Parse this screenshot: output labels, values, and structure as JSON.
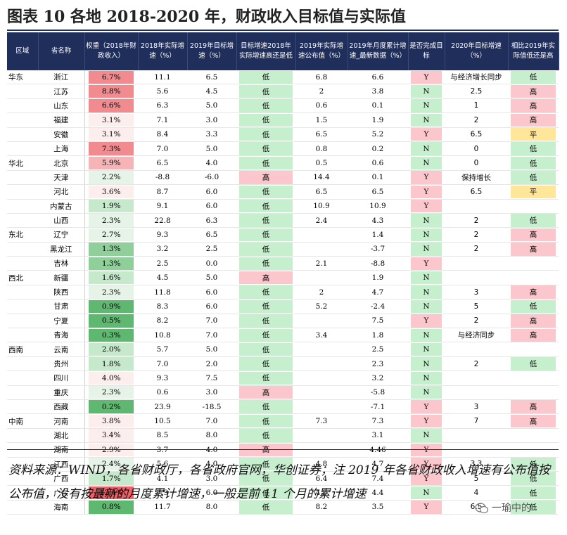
{
  "title": "图表 10   各地 2018-2020 年，财政收入目标值与实际值",
  "colors": {
    "header_bg": "#1f2e5a",
    "red_strong": "#f28b8f",
    "red_mid": "#f6b4b7",
    "red_light": "#fbdadc",
    "red_faint": "#fdeeee",
    "green_strong": "#5fb86f",
    "green_mid": "#8fd09a",
    "green_light": "#c6e9cc",
    "green_faint": "#e6f4e8",
    "pink": "#fbc7cc",
    "lightgreen": "#c6efce",
    "yellow": "#ffe699"
  },
  "headers": [
    "区域",
    "省名称",
    "权重（2018年财政收入）",
    "2018年实际增速（%）",
    "2019年目标增速（%）",
    "目标增速2018年实际增速高还是低",
    "2019年实际增速公布值（%）",
    "2019年月度累计增速_最新数据（%）",
    "是否完成目标",
    "2020年目标增速（%）",
    "相比2019年实际值低还是高"
  ],
  "rows": [
    {
      "region": "华东",
      "prov": "浙江",
      "w": "6.7%",
      "wc": "red_strong",
      "a18": "11.1",
      "t19": "6.5",
      "hl": "低",
      "hlc": "lightgreen",
      "pub19": "6.8",
      "m19": "6.6",
      "done": "Y",
      "dc": "pink",
      "t20": "与经济增长同步",
      "cmp": "低",
      "cc": "lightgreen"
    },
    {
      "region": "",
      "prov": "江苏",
      "w": "8.8%",
      "wc": "red_strong",
      "a18": "5.6",
      "t19": "4.5",
      "hl": "低",
      "hlc": "lightgreen",
      "pub19": "2",
      "m19": "3.8",
      "done": "N",
      "dc": "lightgreen",
      "t20": "2.5",
      "cmp": "高",
      "cc": "pink"
    },
    {
      "region": "",
      "prov": "山东",
      "w": "6.6%",
      "wc": "red_strong",
      "a18": "6.3",
      "t19": "5.0",
      "hl": "低",
      "hlc": "lightgreen",
      "pub19": "0.6",
      "m19": "0.1",
      "done": "N",
      "dc": "lightgreen",
      "t20": "1",
      "cmp": "高",
      "cc": "pink"
    },
    {
      "region": "",
      "prov": "福建",
      "w": "3.1%",
      "wc": "red_faint",
      "a18": "7.1",
      "t19": "3.0",
      "hl": "低",
      "hlc": "lightgreen",
      "pub19": "1.5",
      "m19": "1.9",
      "done": "N",
      "dc": "lightgreen",
      "t20": "2",
      "cmp": "高",
      "cc": "pink"
    },
    {
      "region": "",
      "prov": "安徽",
      "w": "3.1%",
      "wc": "red_faint",
      "a18": "8.4",
      "t19": "3.3",
      "hl": "低",
      "hlc": "lightgreen",
      "pub19": "6.5",
      "m19": "5.2",
      "done": "Y",
      "dc": "pink",
      "t20": "6.5",
      "cmp": "平",
      "cc": "yellow"
    },
    {
      "region": "",
      "prov": "上海",
      "w": "7.3%",
      "wc": "red_strong",
      "a18": "7.0",
      "t19": "5.0",
      "hl": "低",
      "hlc": "lightgreen",
      "pub19": "0.8",
      "m19": "0.2",
      "done": "N",
      "dc": "lightgreen",
      "t20": "0",
      "cmp": "低",
      "cc": "lightgreen"
    },
    {
      "region": "华北",
      "prov": "北京",
      "w": "5.9%",
      "wc": "red_mid",
      "a18": "6.5",
      "t19": "4.0",
      "hl": "低",
      "hlc": "lightgreen",
      "pub19": "0.5",
      "m19": "0.6",
      "done": "N",
      "dc": "lightgreen",
      "t20": "0",
      "cmp": "低",
      "cc": "lightgreen"
    },
    {
      "region": "",
      "prov": "天津",
      "w": "2.2%",
      "wc": "green_faint",
      "a18": "-8.8",
      "t19": "-6.0",
      "hl": "高",
      "hlc": "pink",
      "pub19": "14.4",
      "m19": "0.1",
      "done": "Y",
      "dc": "pink",
      "t20": "保持增长",
      "cmp": "低",
      "cc": "lightgreen"
    },
    {
      "region": "",
      "prov": "河北",
      "w": "3.6%",
      "wc": "red_faint",
      "a18": "8.7",
      "t19": "6.0",
      "hl": "低",
      "hlc": "lightgreen",
      "pub19": "6.5",
      "m19": "6.5",
      "done": "Y",
      "dc": "pink",
      "t20": "6.5",
      "cmp": "平",
      "cc": "yellow"
    },
    {
      "region": "",
      "prov": "内蒙古",
      "w": "1.9%",
      "wc": "green_light",
      "a18": "9.1",
      "t19": "6.0",
      "hl": "低",
      "hlc": "lightgreen",
      "pub19": "10.9",
      "m19": "10.9",
      "done": "Y",
      "dc": "pink",
      "t20": "",
      "cmp": "",
      "cc": ""
    },
    {
      "region": "",
      "prov": "山西",
      "w": "2.3%",
      "wc": "green_faint",
      "a18": "22.8",
      "t19": "6.3",
      "hl": "低",
      "hlc": "lightgreen",
      "pub19": "2.4",
      "m19": "4.3",
      "done": "N",
      "dc": "lightgreen",
      "t20": "2",
      "cmp": "低",
      "cc": "lightgreen"
    },
    {
      "region": "东北",
      "prov": "辽宁",
      "w": "2.7%",
      "wc": "green_faint",
      "a18": "9.3",
      "t19": "6.5",
      "hl": "低",
      "hlc": "lightgreen",
      "pub19": "",
      "m19": "1.4",
      "done": "N",
      "dc": "lightgreen",
      "t20": "2",
      "cmp": "高",
      "cc": "pink"
    },
    {
      "region": "",
      "prov": "黑龙江",
      "w": "1.3%",
      "wc": "green_mid",
      "a18": "3.2",
      "t19": "2.5",
      "hl": "低",
      "hlc": "lightgreen",
      "pub19": "",
      "m19": "-3.7",
      "done": "N",
      "dc": "lightgreen",
      "t20": "2",
      "cmp": "高",
      "cc": "pink"
    },
    {
      "region": "",
      "prov": "吉林",
      "w": "1.3%",
      "wc": "green_mid",
      "a18": "2.5",
      "t19": "0.0",
      "hl": "低",
      "hlc": "lightgreen",
      "pub19": "2.1",
      "m19": "-8.8",
      "done": "Y",
      "dc": "pink",
      "t20": "",
      "cmp": "",
      "cc": ""
    },
    {
      "region": "西北",
      "prov": "新疆",
      "w": "1.6%",
      "wc": "green_light",
      "a18": "4.5",
      "t19": "5.0",
      "hl": "高",
      "hlc": "pink",
      "pub19": "",
      "m19": "1.9",
      "done": "N",
      "dc": "lightgreen",
      "t20": "",
      "cmp": "",
      "cc": ""
    },
    {
      "region": "",
      "prov": "陕西",
      "w": "2.3%",
      "wc": "green_faint",
      "a18": "11.8",
      "t19": "6.0",
      "hl": "低",
      "hlc": "lightgreen",
      "pub19": "2",
      "m19": "4.7",
      "done": "N",
      "dc": "lightgreen",
      "t20": "3",
      "cmp": "高",
      "cc": "pink"
    },
    {
      "region": "",
      "prov": "甘肃",
      "w": "0.9%",
      "wc": "green_strong",
      "a18": "8.3",
      "t19": "6.0",
      "hl": "低",
      "hlc": "lightgreen",
      "pub19": "5.2",
      "m19": "-2.4",
      "done": "N",
      "dc": "lightgreen",
      "t20": "5",
      "cmp": "低",
      "cc": "lightgreen"
    },
    {
      "region": "",
      "prov": "宁夏",
      "w": "0.5%",
      "wc": "green_strong",
      "a18": "8.2",
      "t19": "7.0",
      "hl": "低",
      "hlc": "lightgreen",
      "pub19": "",
      "m19": "7.5",
      "done": "Y",
      "dc": "pink",
      "t20": "2",
      "cmp": "高",
      "cc": "pink"
    },
    {
      "region": "",
      "prov": "青海",
      "w": "0.3%",
      "wc": "green_strong",
      "a18": "10.8",
      "t19": "7.0",
      "hl": "低",
      "hlc": "lightgreen",
      "pub19": "3.4",
      "m19": "1.8",
      "done": "N",
      "dc": "lightgreen",
      "t20": "与经济同步",
      "cmp": "高",
      "cc": "pink"
    },
    {
      "region": "西南",
      "prov": "云南",
      "w": "2.0%",
      "wc": "green_light",
      "a18": "5.7",
      "t19": "5.0",
      "hl": "低",
      "hlc": "lightgreen",
      "pub19": "",
      "m19": "2.5",
      "done": "N",
      "dc": "lightgreen",
      "t20": "",
      "cmp": "",
      "cc": ""
    },
    {
      "region": "",
      "prov": "贵州",
      "w": "1.8%",
      "wc": "green_light",
      "a18": "7.0",
      "t19": "2.0",
      "hl": "低",
      "hlc": "lightgreen",
      "pub19": "",
      "m19": "2.3",
      "done": "N",
      "dc": "lightgreen",
      "t20": "2",
      "cmp": "低",
      "cc": "lightgreen"
    },
    {
      "region": "",
      "prov": "四川",
      "w": "4.0%",
      "wc": "red_faint",
      "a18": "9.3",
      "t19": "7.5",
      "hl": "低",
      "hlc": "lightgreen",
      "pub19": "",
      "m19": "3.2",
      "done": "N",
      "dc": "lightgreen",
      "t20": "",
      "cmp": "",
      "cc": ""
    },
    {
      "region": "",
      "prov": "重庆",
      "w": "2.3%",
      "wc": "green_faint",
      "a18": "0.6",
      "t19": "3.0",
      "hl": "高",
      "hlc": "pink",
      "pub19": "",
      "m19": "-5.8",
      "done": "N",
      "dc": "lightgreen",
      "t20": "",
      "cmp": "",
      "cc": ""
    },
    {
      "region": "",
      "prov": "西藏",
      "w": "0.2%",
      "wc": "green_strong",
      "a18": "23.9",
      "t19": "-18.5",
      "hl": "低",
      "hlc": "lightgreen",
      "pub19": "",
      "m19": "-7.1",
      "done": "Y",
      "dc": "pink",
      "t20": "3",
      "cmp": "高",
      "cc": "pink"
    },
    {
      "region": "中南",
      "prov": "河南",
      "w": "3.8%",
      "wc": "red_faint",
      "a18": "10.5",
      "t19": "7.0",
      "hl": "低",
      "hlc": "lightgreen",
      "pub19": "7.3",
      "m19": "7.3",
      "done": "Y",
      "dc": "pink",
      "t20": "7",
      "cmp": "高",
      "cc": "pink"
    },
    {
      "region": "",
      "prov": "湖北",
      "w": "3.4%",
      "wc": "red_faint",
      "a18": "8.5",
      "t19": "8.0",
      "hl": "低",
      "hlc": "lightgreen",
      "pub19": "",
      "m19": "3.1",
      "done": "N",
      "dc": "lightgreen",
      "t20": "",
      "cmp": "",
      "cc": ""
    },
    {
      "region": "",
      "prov": "湖南",
      "w": "2.9%",
      "wc": "red_faint",
      "a18": "3.7",
      "t19": "4.0",
      "hl": "高",
      "hlc": "pink",
      "pub19": "",
      "m19": "4.46",
      "done": "Y",
      "dc": "pink",
      "t20": "",
      "cmp": "",
      "cc": ""
    },
    {
      "region": "",
      "prov": "江西",
      "w": "2.4%",
      "wc": "green_faint",
      "a18": "5.6",
      "t19": "4.0",
      "hl": "低",
      "hlc": "lightgreen",
      "pub19": "4.8",
      "m19": "4.7",
      "done": "Y",
      "dc": "pink",
      "t20": "3.3",
      "cmp": "低",
      "cc": "lightgreen"
    },
    {
      "region": "",
      "prov": "广西",
      "w": "1.7%",
      "wc": "green_light",
      "a18": "4.1",
      "t19": "3.0",
      "hl": "低",
      "hlc": "lightgreen",
      "pub19": "6.4",
      "m19": "7.4",
      "done": "Y",
      "dc": "pink",
      "t20": "5",
      "cmp": "低",
      "cc": "lightgreen"
    },
    {
      "region": "",
      "prov": "广东",
      "w": "12.4%",
      "wc": "red_deep",
      "a18": "7.9",
      "t19": "6.0",
      "hl": "低",
      "hlc": "lightgreen",
      "pub19": "4.5",
      "m19": "4.4",
      "done": "N",
      "dc": "lightgreen",
      "t20": "4",
      "cmp": "低",
      "cc": "lightgreen"
    },
    {
      "region": "",
      "prov": "海南",
      "w": "0.8%",
      "wc": "green_strong",
      "a18": "11.7",
      "t19": "8.0",
      "hl": "低",
      "hlc": "lightgreen",
      "pub19": "8.2",
      "m19": "3.5",
      "done": "Y",
      "dc": "pink",
      "t20": "6.5",
      "cmp": "低",
      "cc": "lightgreen"
    }
  ],
  "source_note": "资料来源：WIND，各省财政厅，各省政府官网，华创证券；注 2019 年各省财政收入增速有公布值按公布值，没有按最新的月度累计增速，一般是前 11 个月的累计增速",
  "watermark": "一瑜中的"
}
